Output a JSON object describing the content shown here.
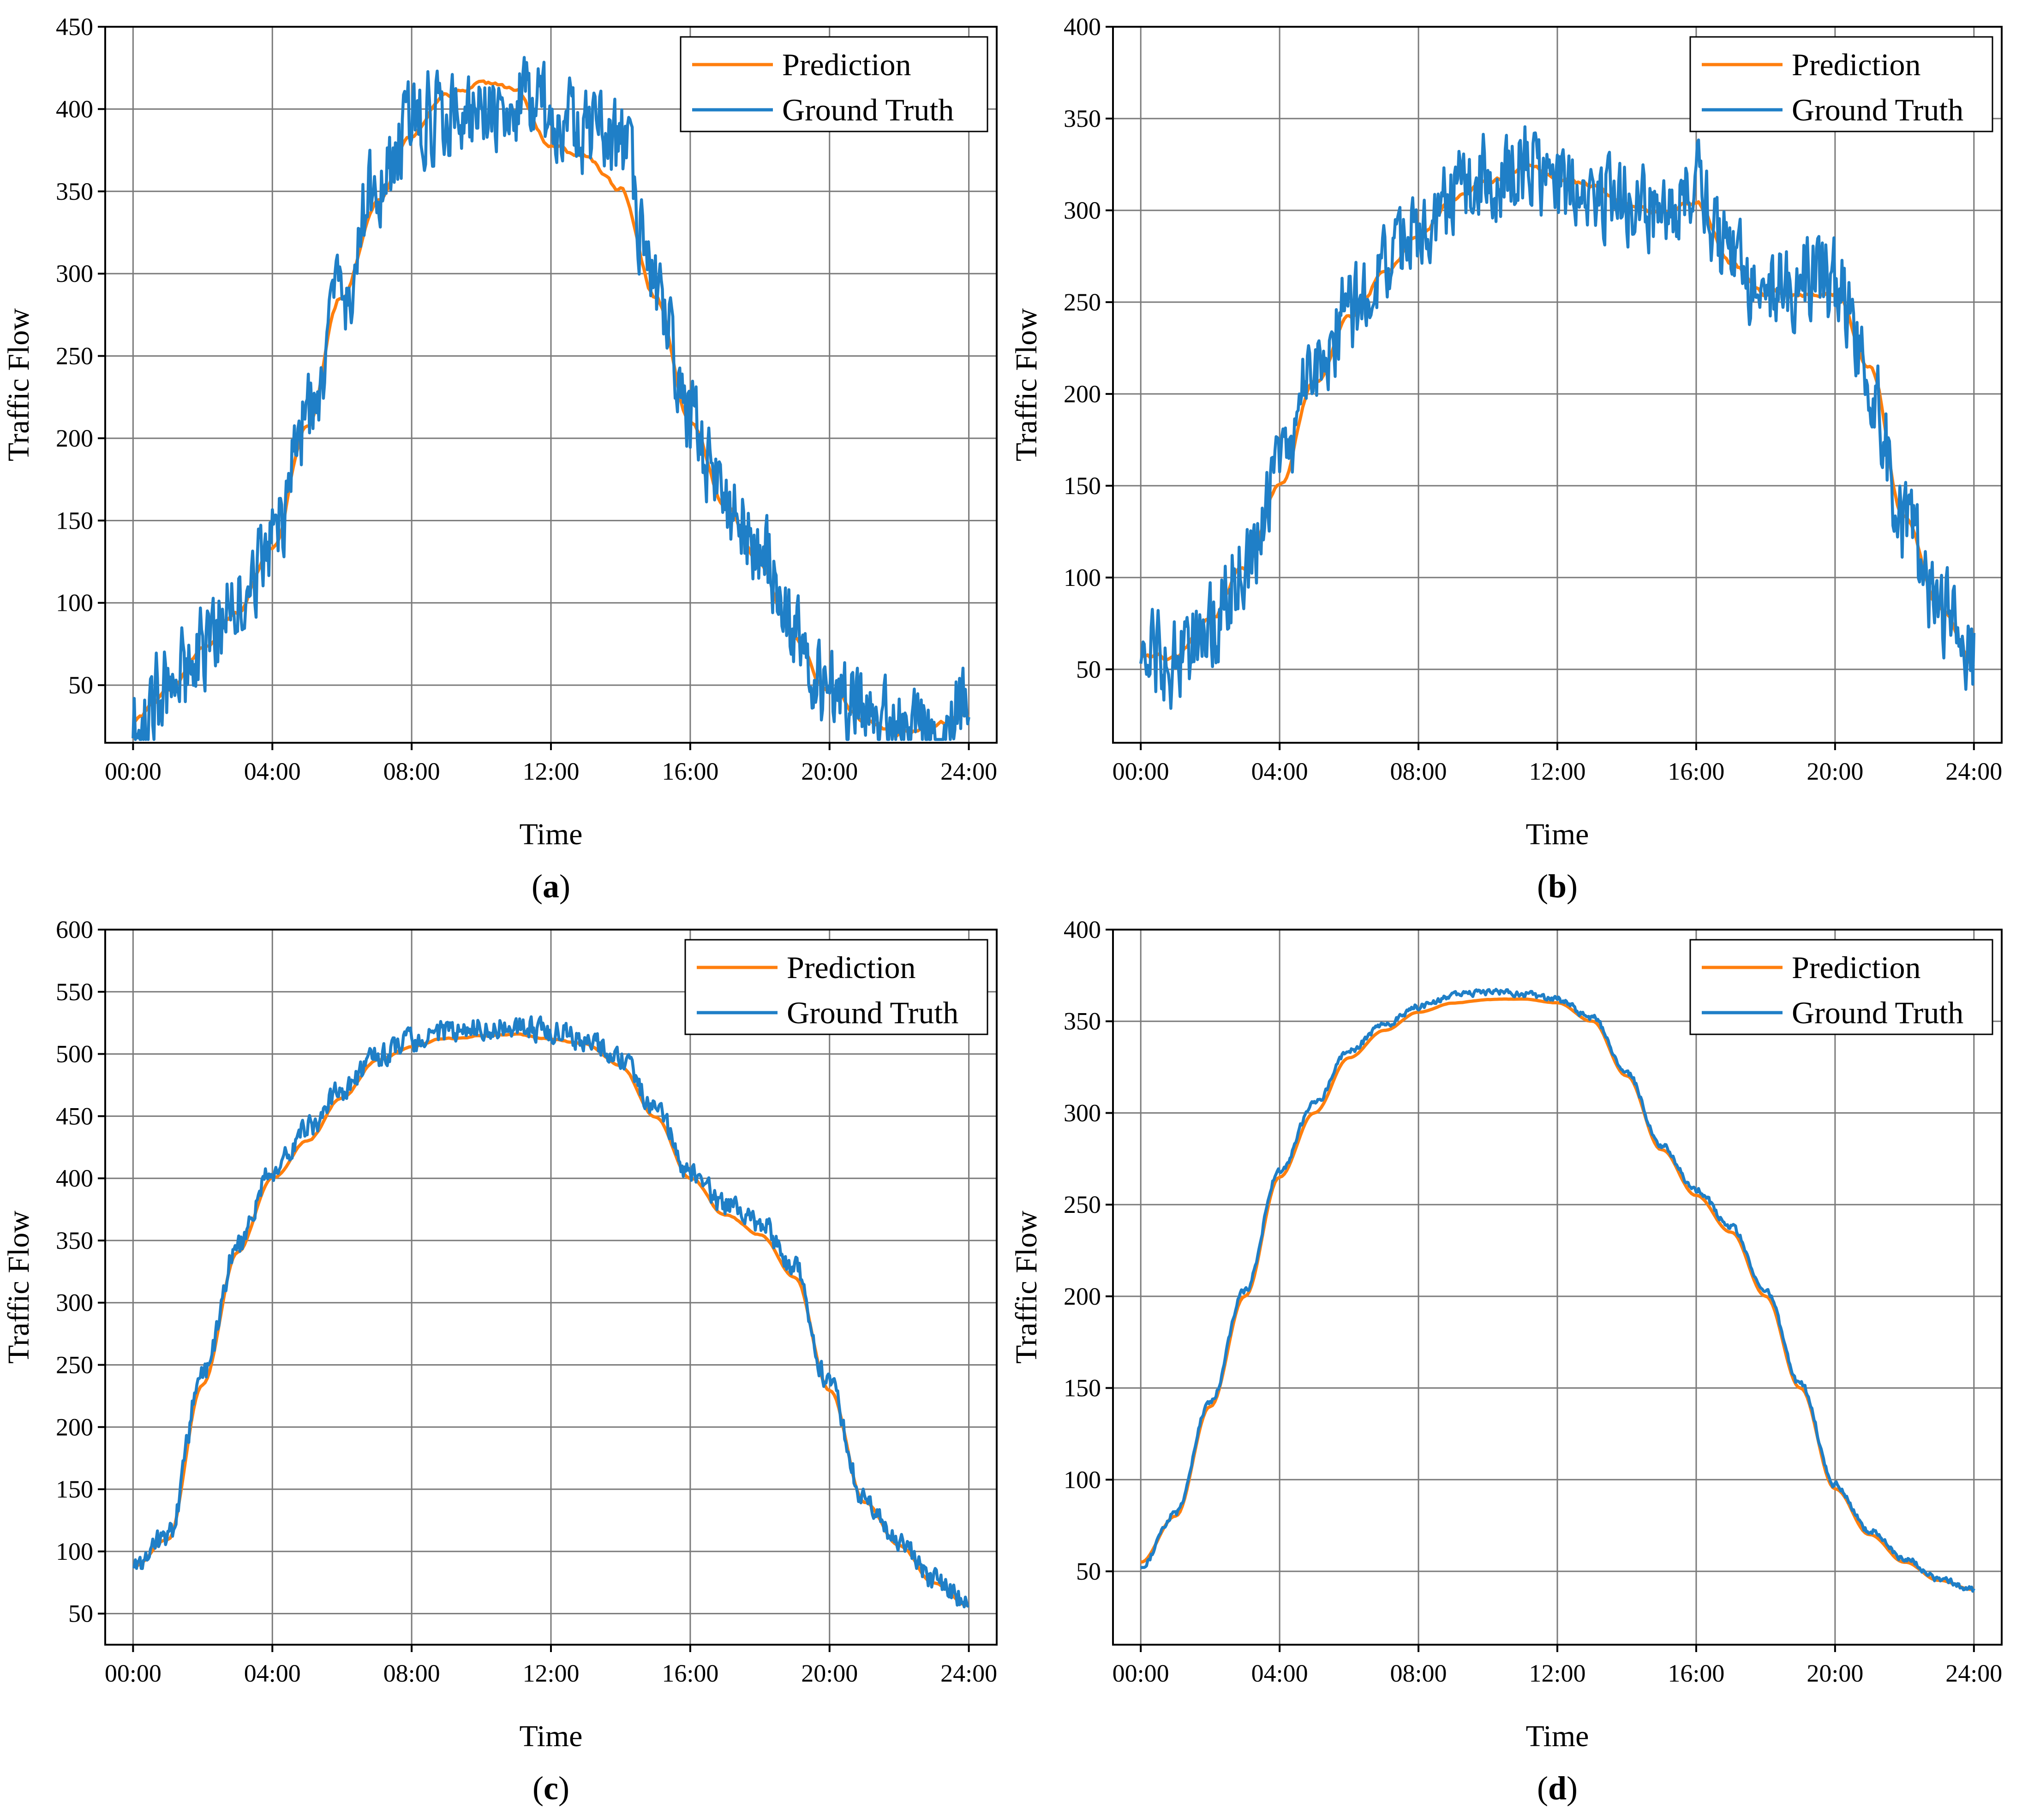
{
  "colors": {
    "prediction": "#FF7F0E",
    "ground_truth": "#1F7FC7",
    "grid": "#7a7a7a",
    "frame": "#000000"
  },
  "legend": {
    "prediction": "Prediction",
    "ground_truth": "Ground Truth",
    "placement": "top-right"
  },
  "chart_data": [
    {
      "id": "a",
      "type": "line",
      "panel_label": "a",
      "xlabel": "Time",
      "ylabel": "Traffic Flow",
      "x_ticks": [
        "00:00",
        "04:00",
        "08:00",
        "12:00",
        "16:00",
        "20:00",
        "24:00"
      ],
      "xlim": [
        -0.8,
        24.8
      ],
      "ylim": [
        15,
        450
      ],
      "y_ticks": [
        50,
        100,
        150,
        200,
        250,
        300,
        350,
        400,
        450
      ],
      "noise": "high",
      "seed": 11,
      "series": [
        {
          "name": "Prediction",
          "x": [
            0,
            1,
            2,
            3,
            4,
            5,
            6,
            7,
            8,
            9,
            10,
            11,
            12,
            13,
            14,
            15,
            16,
            17,
            18,
            19,
            20,
            21,
            22,
            23,
            24
          ],
          "values": [
            28,
            45,
            72,
            95,
            135,
            210,
            285,
            345,
            385,
            410,
            415,
            410,
            380,
            370,
            350,
            285,
            210,
            160,
            125,
            80,
            45,
            30,
            22,
            24,
            33
          ]
        },
        {
          "name": "Ground Truth",
          "x": [
            0,
            1,
            2,
            3,
            4,
            5,
            6,
            7,
            8,
            9,
            10,
            11,
            12,
            13,
            14,
            15,
            16,
            17,
            18,
            19,
            20,
            21,
            22,
            23,
            24
          ],
          "values": [
            27,
            47,
            73,
            98,
            137,
            212,
            290,
            355,
            395,
            398,
            400,
            405,
            395,
            385,
            380,
            290,
            212,
            162,
            130,
            82,
            47,
            31,
            21,
            23,
            35
          ]
        }
      ]
    },
    {
      "id": "b",
      "type": "line",
      "panel_label": "b",
      "xlabel": "Time",
      "ylabel": "Traffic Flow",
      "x_ticks": [
        "00:00",
        "04:00",
        "08:00",
        "12:00",
        "16:00",
        "20:00",
        "24:00"
      ],
      "xlim": [
        -0.8,
        24.8
      ],
      "ylim": [
        10,
        400
      ],
      "y_ticks": [
        50,
        100,
        150,
        200,
        250,
        300,
        350,
        400
      ],
      "noise": "high",
      "seed": 23,
      "series": [
        {
          "name": "Prediction",
          "x": [
            0,
            1,
            2,
            3,
            4,
            5,
            6,
            7,
            8,
            9,
            10,
            11,
            12,
            13,
            14,
            15,
            16,
            17,
            18,
            19,
            20,
            21,
            22,
            23,
            24
          ],
          "values": [
            58,
            55,
            75,
            105,
            150,
            205,
            240,
            265,
            285,
            305,
            315,
            322,
            318,
            312,
            305,
            300,
            305,
            270,
            255,
            255,
            255,
            215,
            130,
            85,
            55
          ]
        },
        {
          "name": "Ground Truth",
          "x": [
            0,
            1,
            2,
            3,
            4,
            5,
            6,
            7,
            8,
            9,
            10,
            11,
            12,
            13,
            14,
            15,
            16,
            17,
            18,
            19,
            20,
            21,
            22,
            23,
            24
          ],
          "values": [
            60,
            55,
            76,
            108,
            152,
            210,
            245,
            270,
            292,
            310,
            318,
            328,
            315,
            310,
            308,
            300,
            312,
            275,
            258,
            262,
            260,
            210,
            125,
            82,
            52
          ]
        }
      ]
    },
    {
      "id": "c",
      "type": "line",
      "panel_label": "c",
      "xlabel": "Time",
      "ylabel": "Traffic Flow",
      "x_ticks": [
        "00:00",
        "04:00",
        "08:00",
        "12:00",
        "16:00",
        "20:00",
        "24:00"
      ],
      "xlim": [
        -0.8,
        24.8
      ],
      "ylim": [
        25,
        600
      ],
      "y_ticks": [
        50,
        100,
        150,
        200,
        250,
        300,
        350,
        400,
        450,
        500,
        550,
        600
      ],
      "noise": "medium",
      "seed": 37,
      "series": [
        {
          "name": "Prediction",
          "x": [
            0,
            1,
            2,
            3,
            4,
            5,
            6,
            7,
            8,
            9,
            10,
            11,
            12,
            13,
            14,
            15,
            16,
            17,
            18,
            19,
            20,
            21,
            22,
            23,
            24
          ],
          "values": [
            88,
            110,
            235,
            340,
            400,
            430,
            465,
            495,
            505,
            512,
            515,
            515,
            512,
            508,
            490,
            450,
            400,
            370,
            355,
            320,
            230,
            140,
            105,
            75,
            57
          ]
        },
        {
          "name": "Ground Truth",
          "x": [
            0,
            1,
            2,
            3,
            4,
            5,
            6,
            7,
            8,
            9,
            10,
            11,
            12,
            13,
            14,
            15,
            16,
            17,
            18,
            19,
            20,
            21,
            22,
            23,
            24
          ],
          "values": [
            90,
            112,
            240,
            345,
            408,
            440,
            470,
            498,
            510,
            518,
            522,
            522,
            518,
            512,
            495,
            455,
            405,
            378,
            365,
            328,
            232,
            142,
            107,
            76,
            58
          ]
        }
      ]
    },
    {
      "id": "d",
      "type": "line",
      "panel_label": "d",
      "xlabel": "Time",
      "ylabel": "Traffic Flow",
      "x_ticks": [
        "00:00",
        "04:00",
        "08:00",
        "12:00",
        "16:00",
        "20:00",
        "24:00"
      ],
      "xlim": [
        -0.8,
        24.8
      ],
      "ylim": [
        10,
        400
      ],
      "y_ticks": [
        50,
        100,
        150,
        200,
        250,
        300,
        350,
        400
      ],
      "noise": "low",
      "seed": 53,
      "series": [
        {
          "name": "Prediction",
          "x": [
            0,
            1,
            2,
            3,
            4,
            5,
            6,
            7,
            8,
            9,
            10,
            11,
            12,
            13,
            14,
            15,
            16,
            17,
            18,
            19,
            20,
            21,
            22,
            23,
            24
          ],
          "values": [
            55,
            80,
            140,
            200,
            265,
            300,
            330,
            345,
            355,
            360,
            362,
            362,
            360,
            350,
            320,
            280,
            255,
            235,
            200,
            150,
            95,
            70,
            55,
            45,
            40
          ]
        },
        {
          "name": "Ground Truth",
          "x": [
            0,
            1,
            2,
            3,
            4,
            5,
            6,
            7,
            8,
            9,
            10,
            11,
            12,
            13,
            14,
            15,
            16,
            17,
            18,
            19,
            20,
            21,
            22,
            23,
            24
          ],
          "values": [
            52,
            82,
            142,
            203,
            268,
            305,
            334,
            348,
            358,
            364,
            366,
            365,
            362,
            352,
            322,
            282,
            258,
            238,
            203,
            152,
            97,
            72,
            57,
            46,
            40
          ]
        }
      ]
    }
  ]
}
